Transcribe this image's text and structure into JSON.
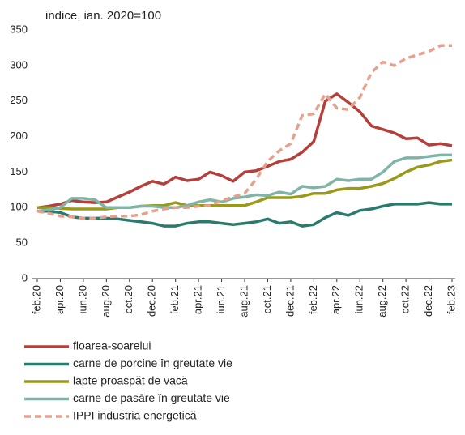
{
  "chart_data": {
    "type": "line",
    "y_axis_label": "indice, ian. 2020=100",
    "categories": [
      "feb.20",
      null,
      "apr.20",
      null,
      "iun.20",
      null,
      "aug.20",
      null,
      "oct.20",
      null,
      "dec.20",
      null,
      "feb.21",
      null,
      "apr.21",
      null,
      "iun.21",
      null,
      "aug.21",
      null,
      "oct.21",
      null,
      "dec.21",
      null,
      "feb.22",
      null,
      "apr.22",
      null,
      "iun.22",
      null,
      "aug.22",
      null,
      "oct.22",
      null,
      "dec.22",
      null,
      "feb.23"
    ],
    "series": [
      {
        "name": "floarea-soarelui",
        "color": "#b5403a",
        "dashed": false,
        "values": [
          100,
          102,
          105,
          110,
          108,
          107,
          108,
          115,
          122,
          130,
          137,
          133,
          143,
          138,
          140,
          150,
          145,
          137,
          150,
          152,
          158,
          165,
          168,
          178,
          193,
          250,
          260,
          248,
          235,
          215,
          210,
          205,
          197,
          198,
          188,
          190,
          187
        ]
      },
      {
        "name": "carne de porcine în greutate vie",
        "color": "#2a7a6e",
        "dashed": false,
        "values": [
          95,
          95,
          93,
          87,
          85,
          85,
          85,
          84,
          82,
          80,
          78,
          74,
          74,
          78,
          80,
          80,
          78,
          76,
          78,
          80,
          84,
          78,
          80,
          74,
          76,
          86,
          93,
          89,
          96,
          98,
          102,
          105,
          105,
          105,
          107,
          105,
          105
        ]
      },
      {
        "name": "lapte proaspăt de vacă",
        "color": "#9a9a1a",
        "dashed": false,
        "values": [
          100,
          100,
          99,
          98,
          98,
          98,
          98,
          100,
          100,
          102,
          103,
          103,
          107,
          103,
          103,
          103,
          103,
          103,
          103,
          108,
          114,
          114,
          114,
          116,
          120,
          120,
          125,
          127,
          127,
          130,
          134,
          141,
          150,
          157,
          160,
          165,
          167
        ]
      },
      {
        "name": "carne de pasăre în greutate vie",
        "color": "#7fb5a8",
        "dashed": false,
        "values": [
          95,
          97,
          100,
          113,
          113,
          111,
          100,
          100,
          100,
          102,
          102,
          100,
          100,
          103,
          108,
          111,
          108,
          113,
          115,
          118,
          117,
          122,
          119,
          130,
          128,
          130,
          140,
          138,
          140,
          140,
          150,
          165,
          170,
          170,
          172,
          174,
          174
        ]
      },
      {
        "name": "IPPI industria energetică",
        "color": "#e6a08c",
        "dashed": true,
        "values": [
          95,
          92,
          88,
          87,
          85,
          85,
          87,
          88,
          88,
          90,
          95,
          98,
          100,
          100,
          102,
          103,
          110,
          115,
          120,
          140,
          165,
          180,
          190,
          230,
          232,
          260,
          240,
          238,
          255,
          290,
          305,
          300,
          310,
          315,
          320,
          328,
          328
        ]
      }
    ],
    "ylim": [
      0,
      350
    ],
    "yticks": [
      0,
      50,
      100,
      150,
      200,
      250,
      300,
      350
    ],
    "grid": false
  }
}
